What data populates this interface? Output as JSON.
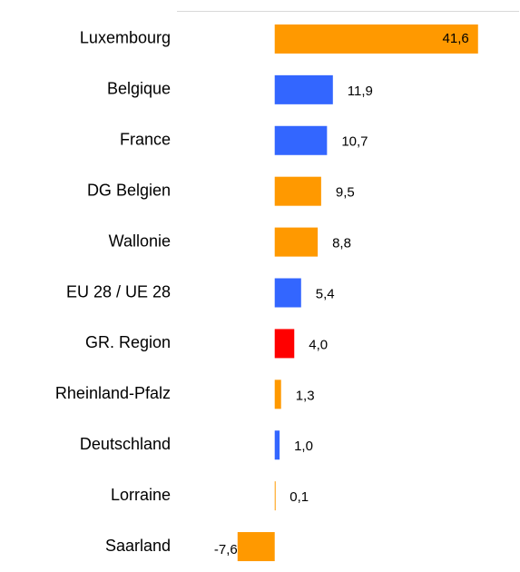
{
  "chart_data": {
    "type": "bar",
    "orientation": "horizontal",
    "categories": [
      "Luxembourg",
      "Belgique",
      "France",
      "DG Belgien",
      "Wallonie",
      "EU 28 / UE 28",
      "GR. Region",
      "Rheinland-Pfalz",
      "Deutschland",
      "Lorraine",
      "Saarland"
    ],
    "values": [
      41.6,
      11.9,
      10.7,
      9.5,
      8.8,
      5.4,
      4.0,
      1.3,
      1.0,
      0.1,
      -7.6
    ],
    "value_labels": [
      "41,6",
      "11,9",
      "10,7",
      "9,5",
      "8,8",
      "5,4",
      "4,0",
      "1,3",
      "1,0",
      "0,1",
      "-7,6"
    ],
    "colors": [
      "#FF9900",
      "#3366FF",
      "#3366FF",
      "#FF9900",
      "#FF9900",
      "#3366FF",
      "#FF0000",
      "#FF9900",
      "#3366FF",
      "#FF9900",
      "#FF9900"
    ],
    "xlim": [
      -20,
      50
    ]
  }
}
